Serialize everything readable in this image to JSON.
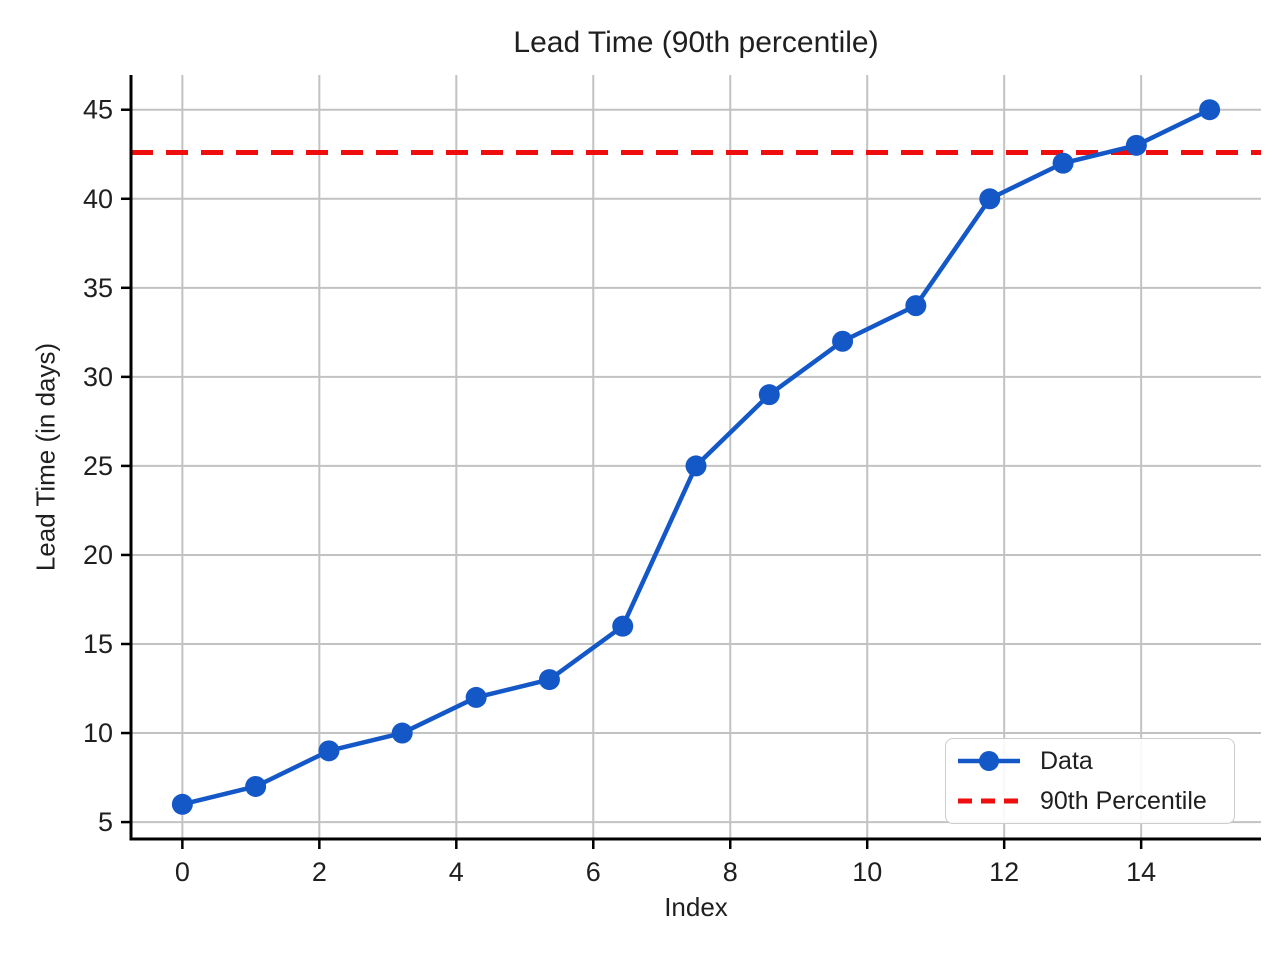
{
  "chart_data": {
    "type": "line",
    "title": "Lead Time (90th percentile)",
    "xlabel": "Index",
    "ylabel": "Lead Time (in days)",
    "x": [
      0,
      1.07,
      2.14,
      3.21,
      4.29,
      5.36,
      6.43,
      7.5,
      8.57,
      9.64,
      10.71,
      11.79,
      12.86,
      13.93,
      15
    ],
    "y": [
      6,
      7,
      9,
      10,
      12,
      13,
      16,
      25,
      29,
      32,
      34,
      40,
      42,
      43,
      45
    ],
    "series": [
      {
        "name": "Data",
        "style": "solid-line-with-markers"
      },
      {
        "name": "90th Percentile",
        "style": "dashed-horizontal-line",
        "value": 42.6
      }
    ],
    "percentile_value": 42.6,
    "xlim": [
      -0.75,
      15.75
    ],
    "ylim": [
      4.05,
      46.95
    ],
    "x_ticks": [
      0,
      2,
      4,
      6,
      8,
      10,
      12,
      14
    ],
    "y_ticks": [
      5,
      10,
      15,
      20,
      25,
      30,
      35,
      40,
      45
    ],
    "grid": true,
    "legend_position": "lower right",
    "colors": {
      "series": "#1458C8",
      "percentile": "#EE0E0E",
      "grid": "#C2C2C2",
      "axis": "#000000",
      "text": "#1f1f1f"
    }
  },
  "legend": {
    "data_label": "Data",
    "percentile_label": "90th Percentile"
  }
}
